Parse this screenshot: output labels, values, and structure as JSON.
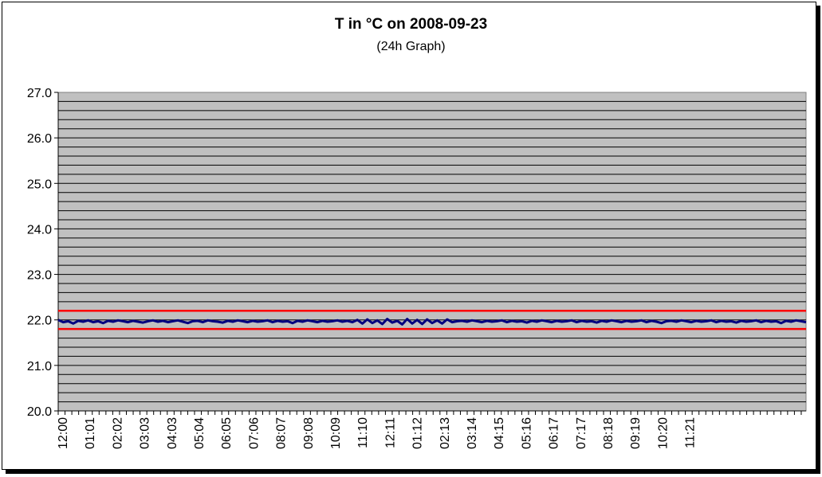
{
  "chart_data": {
    "type": "line",
    "title": "T in °C on 2008-09-23",
    "subtitle": "(24h Graph)",
    "ylim": [
      20.0,
      27.0
    ],
    "y_ticks": [
      "20.0",
      "21.0",
      "22.0",
      "23.0",
      "24.0",
      "25.0",
      "26.0",
      "27.0"
    ],
    "y_minor_step": 0.2,
    "x_tick_labels": [
      "12:00",
      "01:01",
      "02:02",
      "03:03",
      "04:03",
      "05:04",
      "06:05",
      "07:06",
      "08:07",
      "09:08",
      "10:09",
      "11:10",
      "12:11",
      "01:12",
      "02:13",
      "03:14",
      "04:15",
      "05:16",
      "06:17",
      "07:17",
      "08:18",
      "09:19",
      "10:20",
      "11:21"
    ],
    "grid": true,
    "plot_background": "#c0c0c0",
    "reference_lines": [
      {
        "value": 22.2,
        "color": "#ff0000"
      },
      {
        "value": 21.8,
        "color": "#ff0000"
      }
    ],
    "series": [
      {
        "color": "#000080",
        "values": [
          22.0,
          21.95,
          21.97,
          21.92,
          21.98,
          21.96,
          21.99,
          21.95,
          21.97,
          21.93,
          21.98,
          21.96,
          21.99,
          21.97,
          21.95,
          21.98,
          21.96,
          21.94,
          21.97,
          21.99,
          21.96,
          21.98,
          21.95,
          21.97,
          21.99,
          21.96,
          21.93,
          21.97,
          21.98,
          21.95,
          21.99,
          21.97,
          21.96,
          21.94,
          21.98,
          21.96,
          21.99,
          21.97,
          21.95,
          21.98,
          21.96,
          21.97,
          21.99,
          21.95,
          21.98,
          21.96,
          21.97,
          21.93,
          21.98,
          21.96,
          21.99,
          21.97,
          21.95,
          21.98,
          21.96,
          21.97,
          21.99,
          21.96,
          21.98,
          21.95,
          22.0,
          21.92,
          22.01,
          21.93,
          21.99,
          21.91,
          22.02,
          21.94,
          21.98,
          21.9,
          22.02,
          21.92,
          22.0,
          21.91,
          22.01,
          21.93,
          21.99,
          21.92,
          22.01,
          21.95,
          21.97,
          21.98,
          21.96,
          21.99,
          21.97,
          21.95,
          21.98,
          21.96,
          21.97,
          21.99,
          21.95,
          21.98,
          21.96,
          21.97,
          21.94,
          21.98,
          21.96,
          21.99,
          21.97,
          21.95,
          21.98,
          21.96,
          21.97,
          21.99,
          21.95,
          21.98,
          21.96,
          21.97,
          21.94,
          21.98,
          21.96,
          21.99,
          21.97,
          21.95,
          21.98,
          21.96,
          21.97,
          21.99,
          21.95,
          21.98,
          21.96,
          21.93,
          21.97,
          21.98,
          21.96,
          21.99,
          21.97,
          21.95,
          21.98,
          21.96,
          21.97,
          21.99,
          21.95,
          21.98,
          21.96,
          21.97,
          21.94,
          21.98,
          21.96,
          21.97,
          21.99,
          21.95,
          21.98,
          21.96,
          21.97,
          21.93,
          21.98,
          21.96,
          21.99,
          21.97,
          21.95
        ]
      }
    ]
  }
}
